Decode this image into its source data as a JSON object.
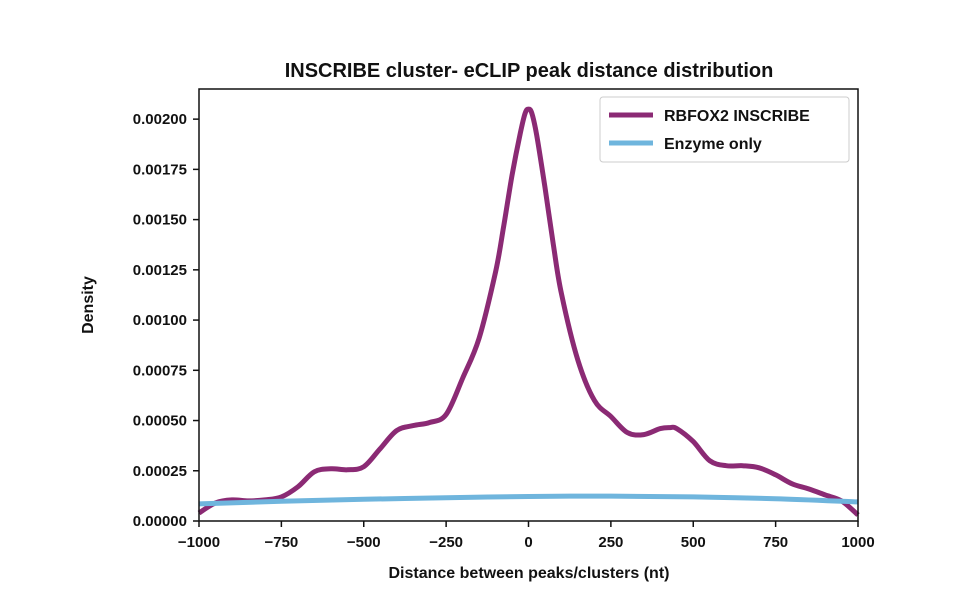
{
  "chart_data": {
    "type": "line",
    "title": "INSCRIBE cluster- eCLIP peak distance distribution",
    "xlabel": "Distance between peaks/clusters (nt)",
    "ylabel": "Density",
    "xlim": [
      -1000,
      1000
    ],
    "ylim": [
      0,
      0.00215
    ],
    "xticks": [
      -1000,
      -750,
      -500,
      -250,
      0,
      250,
      500,
      750,
      1000
    ],
    "xtick_labels": [
      "−1000",
      "−750",
      "−500",
      "−250",
      "0",
      "250",
      "500",
      "750",
      "1000"
    ],
    "yticks": [
      0,
      0.00025,
      0.0005,
      0.00075,
      0.001,
      0.00125,
      0.0015,
      0.00175,
      0.002
    ],
    "ytick_labels": [
      "0.00000",
      "0.00025",
      "0.00050",
      "0.00075",
      "0.00100",
      "0.00125",
      "0.00150",
      "0.00175",
      "0.00200"
    ],
    "grid": false,
    "legend_position": "top-right",
    "series": [
      {
        "name": "RBFOX2 INSCRIBE",
        "color": "#8b2a74",
        "x": [
          -1000,
          -950,
          -900,
          -850,
          -800,
          -750,
          -700,
          -650,
          -600,
          -550,
          -500,
          -450,
          -400,
          -350,
          -300,
          -250,
          -200,
          -150,
          -100,
          -75,
          -50,
          -25,
          -10,
          0,
          10,
          25,
          50,
          75,
          100,
          150,
          200,
          250,
          300,
          350,
          400,
          430,
          450,
          500,
          550,
          600,
          650,
          700,
          750,
          800,
          850,
          900,
          950,
          1000
        ],
        "y": [
          4e-05,
          9e-05,
          0.000105,
          0.0001,
          0.000105,
          0.00012,
          0.00017,
          0.000245,
          0.00026,
          0.000255,
          0.00027,
          0.00036,
          0.00045,
          0.000475,
          0.00049,
          0.00053,
          0.00071,
          0.00091,
          0.00124,
          0.00147,
          0.00172,
          0.00193,
          0.00203,
          0.00205,
          0.00203,
          0.00192,
          0.00166,
          0.00138,
          0.00113,
          0.0008,
          0.0006,
          0.00052,
          0.00044,
          0.00043,
          0.00046,
          0.000465,
          0.00046,
          0.000395,
          0.0003,
          0.000275,
          0.000275,
          0.000265,
          0.00023,
          0.000185,
          0.00016,
          0.00013,
          0.0001,
          3e-05
        ]
      },
      {
        "name": "Enzyme only",
        "color": "#6fb5dd",
        "x": [
          -1000,
          -750,
          -500,
          -250,
          0,
          250,
          500,
          750,
          1000
        ],
        "y": [
          8.5e-05,
          9.8e-05,
          0.000108,
          0.000116,
          0.000122,
          0.000124,
          0.00012,
          0.000111,
          9.5e-05
        ]
      }
    ]
  }
}
